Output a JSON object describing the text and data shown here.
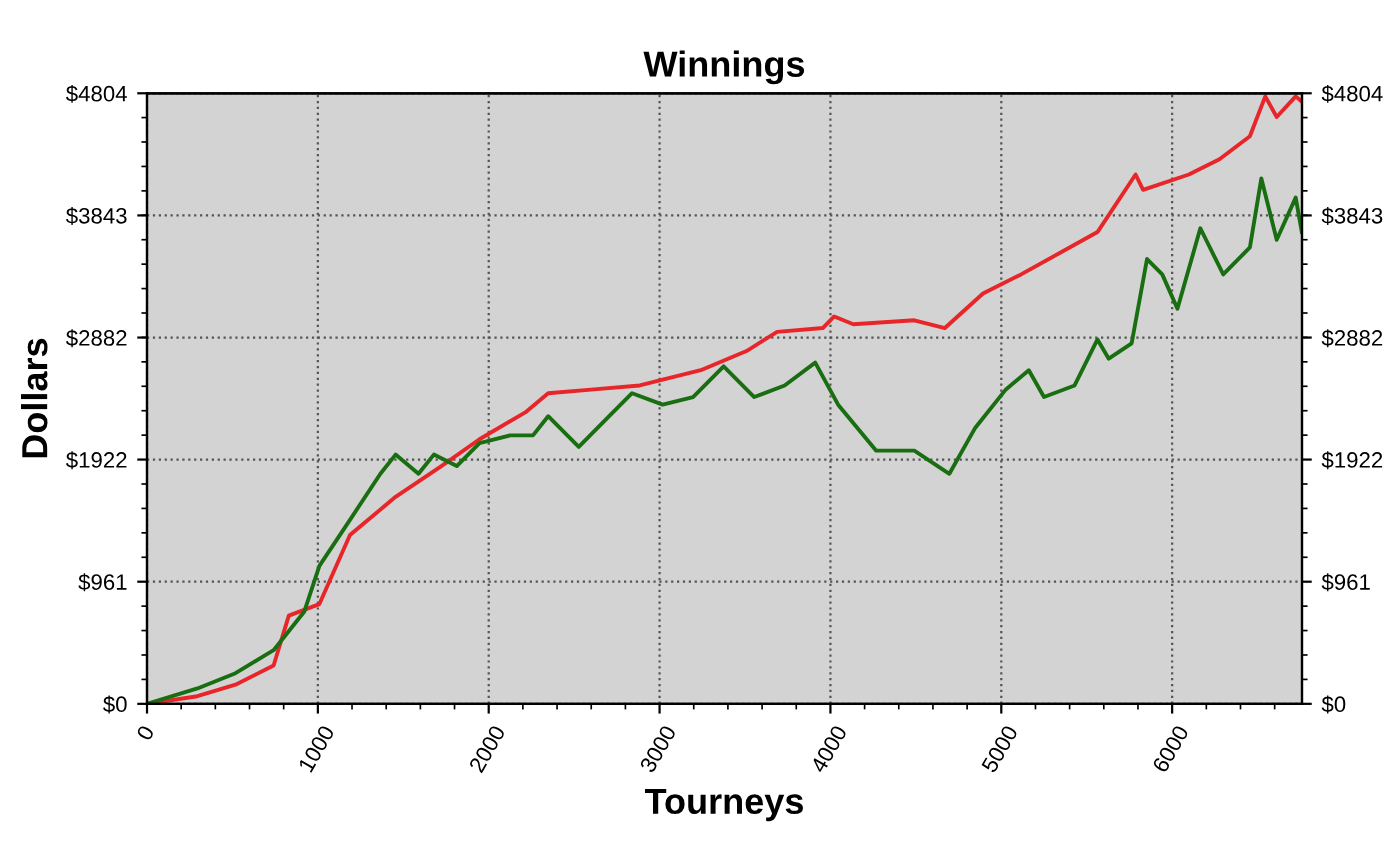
{
  "chart_data": {
    "type": "line",
    "title": "Winnings",
    "xlabel": "Tourneys",
    "ylabel": "Dollars",
    "xlim": [
      0,
      6760
    ],
    "xticks": [
      0,
      1000,
      2000,
      3000,
      4000,
      5000,
      6000
    ],
    "ylim": [
      0,
      4804
    ],
    "yticks": [
      {
        "value": 0,
        "label": "$0"
      },
      {
        "value": 961,
        "label": "$961"
      },
      {
        "value": 1922,
        "label": "$1922"
      },
      {
        "value": 2882,
        "label": "$2882"
      },
      {
        "value": 3843,
        "label": "$3843"
      },
      {
        "value": 4804,
        "label": "$4804"
      }
    ],
    "y2lim": [
      0,
      4804
    ],
    "y2ticks": [
      {
        "value": 0,
        "label": "$0"
      },
      {
        "value": 961,
        "label": "$961"
      },
      {
        "value": 1922,
        "label": "$1922"
      },
      {
        "value": 2882,
        "label": "$2882"
      },
      {
        "value": 3843,
        "label": "$3843"
      },
      {
        "value": 4804,
        "label": "$4804"
      }
    ],
    "grid": true,
    "line_style": "solid",
    "marker": "none",
    "series": [
      {
        "color": "#e8262a",
        "x": [
          0,
          295,
          518,
          741,
          830,
          1009,
          1188,
          1455,
          1723,
          1946,
          2214,
          2348,
          2616,
          2884,
          3241,
          3509,
          3688,
          3955,
          4022,
          4134,
          4491,
          4670,
          4893,
          5116,
          5563,
          5786,
          5830,
          6098,
          6277,
          6455,
          6545,
          6612,
          6723,
          6759
        ],
        "values": [
          0,
          60,
          151,
          302,
          694,
          785,
          1328,
          1629,
          1871,
          2082,
          2293,
          2444,
          2474,
          2505,
          2625,
          2776,
          2927,
          2957,
          3048,
          2987,
          3018,
          2957,
          3229,
          3379,
          3712,
          4165,
          4044,
          4165,
          4285,
          4466,
          4780,
          4617,
          4780,
          4737
        ]
      },
      {
        "color": "#1a6e12",
        "x": [
          0,
          295,
          518,
          741,
          920,
          1009,
          1188,
          1366,
          1455,
          1589,
          1679,
          1813,
          1946,
          2125,
          2259,
          2348,
          2527,
          2705,
          2839,
          3018,
          3196,
          3375,
          3554,
          3732,
          3911,
          4045,
          4268,
          4491,
          4696,
          4848,
          5027,
          5161,
          5250,
          5429,
          5563,
          5629,
          5763,
          5853,
          5942,
          6031,
          6165,
          6299,
          6455,
          6522,
          6612,
          6723,
          6759
        ],
        "values": [
          0,
          121,
          241,
          422,
          724,
          1086,
          1448,
          1810,
          1961,
          1810,
          1961,
          1871,
          2052,
          2112,
          2112,
          2263,
          2022,
          2263,
          2444,
          2354,
          2414,
          2655,
          2414,
          2505,
          2685,
          2354,
          1992,
          1992,
          1810,
          2173,
          2474,
          2625,
          2414,
          2505,
          2867,
          2716,
          2837,
          3500,
          3379,
          3108,
          3742,
          3379,
          3591,
          4134,
          3651,
          3983,
          3712
        ]
      }
    ]
  }
}
